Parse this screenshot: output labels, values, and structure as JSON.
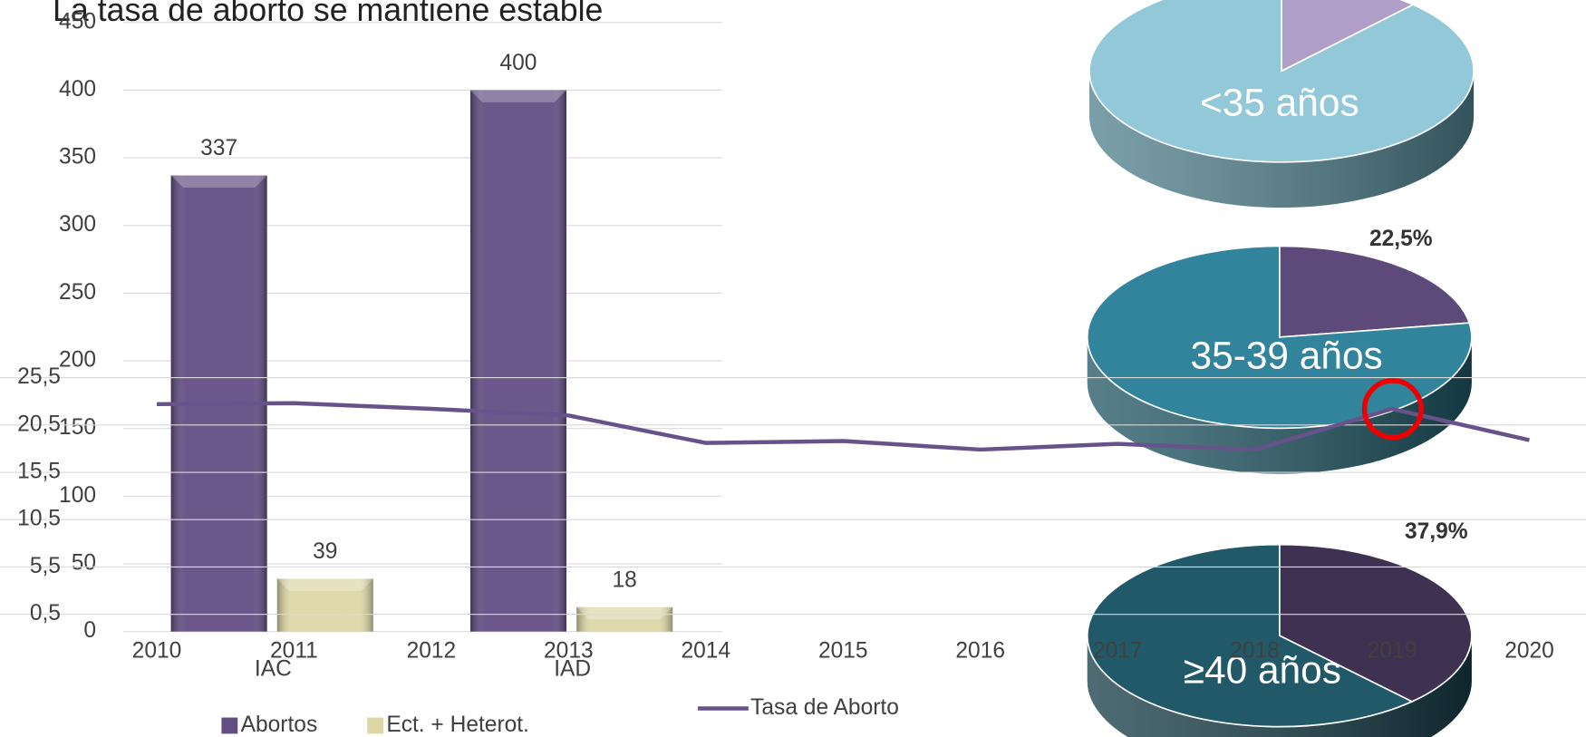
{
  "chart_data": [
    {
      "type": "bar",
      "title": "La tasa de aborto se mantiene estable",
      "categories": [
        "IAC",
        "IAD"
      ],
      "series": [
        {
          "name": "Abortos",
          "color": "#634e84",
          "values": [
            337,
            400
          ]
        },
        {
          "name": "Ect. + Heterot.",
          "color": "#ddd7a8",
          "values": [
            39,
            18
          ]
        }
      ],
      "ylim": [
        0,
        450
      ],
      "yticks": [
        0,
        50,
        100,
        150,
        200,
        250,
        300,
        350,
        400,
        450
      ]
    },
    {
      "type": "pie",
      "title": "<35 años",
      "values": [
        12,
        88
      ],
      "colors": [
        "#b09ec8",
        "#92c8d8"
      ],
      "side": "#4f7f8c"
    },
    {
      "type": "pie",
      "title": "35-39 años",
      "values": [
        22.5,
        77.5
      ],
      "value_labels": [
        "22,5%",
        null
      ],
      "colors": [
        "#5e4a7a",
        "#31849b"
      ],
      "side": "#1e5563"
    },
    {
      "type": "pie",
      "title": "≥40 años",
      "values": [
        37.9,
        62.1
      ],
      "value_labels": [
        "37,9%",
        null
      ],
      "colors": [
        "#3f3151",
        "#215968"
      ],
      "side": "#143a44"
    },
    {
      "type": "line",
      "x": [
        2010,
        2011,
        2012,
        2013,
        2014,
        2015,
        2016,
        2017,
        2018,
        2019,
        2020
      ],
      "xlim": [
        2010,
        2020
      ],
      "series": [
        {
          "name": "Tasa de Aborto",
          "color": "#67538a",
          "values": [
            22.7,
            22.8,
            22.2,
            21.5,
            18.6,
            18.8,
            17.9,
            18.5,
            17.9,
            22.2,
            18.9
          ]
        }
      ],
      "ylim": [
        0.5,
        25.5
      ],
      "yticks": [
        {
          "value": 0.5,
          "label": "0,5"
        },
        {
          "value": 5.5,
          "label": "5,5"
        },
        {
          "value": 10.5,
          "label": "10,5"
        },
        {
          "value": 15.5,
          "label": "15,5"
        },
        {
          "value": 20.5,
          "label": "20,5"
        },
        {
          "value": 25.5,
          "label": "25,5"
        }
      ]
    }
  ]
}
